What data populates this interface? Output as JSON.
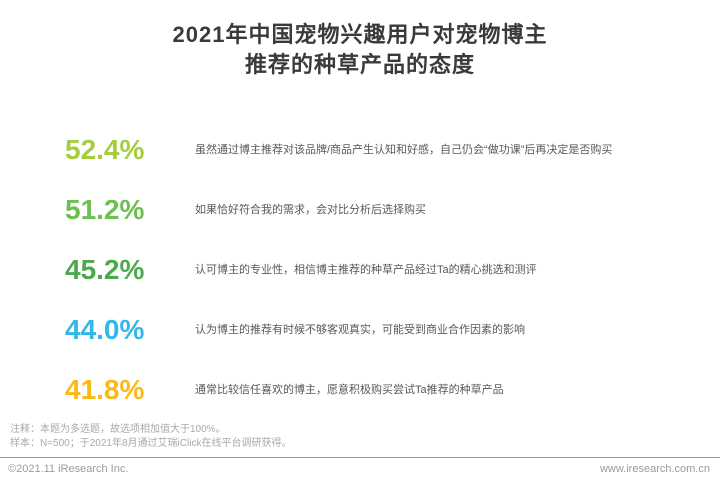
{
  "title": {
    "line1": "2021年中国宠物兴趣用户对宠物博主",
    "line2": "推荐的种草产品的态度"
  },
  "rows": [
    {
      "percent": "52.4%",
      "color": "#a5cd3c",
      "description": "虽然通过博主推荐对该品牌/商品产生认知和好感，自己仍会“做功课”后再决定是否购买"
    },
    {
      "percent": "51.2%",
      "color": "#6cbf50",
      "description": "如果恰好符合我的需求，会对比分析后选择购买"
    },
    {
      "percent": "45.2%",
      "color": "#4ca94c",
      "description": "认可博主的专业性，相信博主推荐的种草产品经过Ta的精心挑选和测评"
    },
    {
      "percent": "44.0%",
      "color": "#30b8e8",
      "description": "认为博主的推荐有时候不够客观真实，可能受到商业合作因素的影响"
    },
    {
      "percent": "41.8%",
      "color": "#fcb813",
      "description": "通常比较信任喜欢的博主，愿意积极购买尝试Ta推荐的种草产品"
    }
  ],
  "notes": {
    "note1": "注释：本题为多选题，故选项相加值大于100%。",
    "note2": "样本：N=500；于2021年8月通过艾瑞iClick在线平台调研获得。"
  },
  "footer": {
    "copyright": "©2021.11 iResearch Inc.",
    "website": "www.iresearch.com.cn"
  },
  "chart_data": {
    "type": "table",
    "title": "2021年中国宠物兴趣用户对宠物博主推荐的种草产品的态度",
    "categories": [
      "虽然通过博主推荐对该品牌/商品产生认知和好感，自己仍会“做功课”后再决定是否购买",
      "如果恰好符合我的需求，会对比分析后选择购买",
      "认可博主的专业性，相信博主推荐的种草产品经过Ta的精心挑选和测评",
      "认为博主的推荐有时候不够客观真实，可能受到商业合作因素的影响",
      "通常比较信任喜欢的博主，愿意积极购买尝试Ta推荐的种草产品"
    ],
    "values": [
      52.4,
      51.2,
      45.2,
      44.0,
      41.8
    ],
    "unit": "%",
    "value_colors": [
      "#a5cd3c",
      "#6cbf50",
      "#4ca94c",
      "#30b8e8",
      "#fcb813"
    ],
    "legend": "none",
    "grid": "off"
  }
}
